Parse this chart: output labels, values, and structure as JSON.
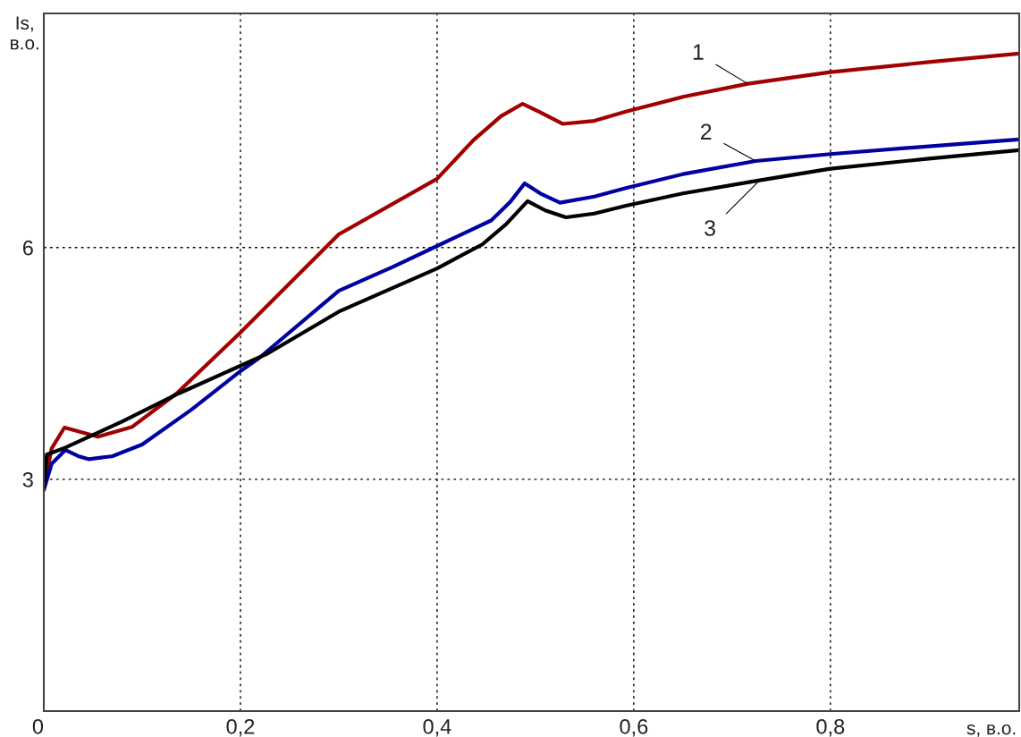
{
  "chart_data": {
    "type": "line",
    "xlabel": "s, в.о.",
    "ylabel": "Is,\nв.о.",
    "xlim": [
      0,
      0.992
    ],
    "ylim": [
      0,
      9.03
    ],
    "xticks": [
      {
        "value": 0,
        "label": "0"
      },
      {
        "value": 0.2,
        "label": "0,2"
      },
      {
        "value": 0.4,
        "label": "0,4"
      },
      {
        "value": 0.6,
        "label": "0,6"
      },
      {
        "value": 0.8,
        "label": "0,8"
      }
    ],
    "yticks": [
      {
        "value": 0,
        "label": null
      },
      3,
      6
    ],
    "grid": true,
    "line_style": "solid",
    "marker": "none",
    "series": [
      {
        "color": "#a00000",
        "x": [
          0,
          0.008,
          0.021,
          0.035,
          0.055,
          0.09,
          0.135,
          0.2,
          0.3,
          0.4,
          0.437,
          0.465,
          0.487,
          0.505,
          0.528,
          0.56,
          0.592,
          0.65,
          0.716,
          0.8,
          0.9,
          0.992
        ],
        "values": [
          2.89,
          3.4,
          3.67,
          3.62,
          3.55,
          3.68,
          4.11,
          4.9,
          6.17,
          6.89,
          7.39,
          7.7,
          7.86,
          7.75,
          7.6,
          7.64,
          7.76,
          7.95,
          8.12,
          8.27,
          8.4,
          8.51
        ]
      },
      {
        "color": "#0000a0",
        "x": [
          0,
          0.008,
          0.022,
          0.035,
          0.046,
          0.07,
          0.1,
          0.15,
          0.2,
          0.219,
          0.3,
          0.355,
          0.4,
          0.455,
          0.475,
          0.489,
          0.505,
          0.525,
          0.56,
          0.592,
          0.65,
          0.724,
          0.8,
          0.9,
          0.992
        ],
        "values": [
          2.86,
          3.2,
          3.38,
          3.3,
          3.26,
          3.3,
          3.45,
          3.9,
          4.4,
          4.57,
          5.44,
          5.75,
          6.02,
          6.35,
          6.6,
          6.83,
          6.7,
          6.58,
          6.66,
          6.77,
          6.95,
          7.12,
          7.21,
          7.31,
          7.4
        ]
      },
      {
        "color": "#000000",
        "x": [
          0,
          0.003,
          0.022,
          0.08,
          0.137,
          0.228,
          0.3,
          0.4,
          0.446,
          0.47,
          0.492,
          0.51,
          0.531,
          0.56,
          0.592,
          0.65,
          0.728,
          0.8,
          0.9,
          0.992
        ],
        "values": [
          2.89,
          3.32,
          3.41,
          3.75,
          4.11,
          4.63,
          5.17,
          5.73,
          6.04,
          6.3,
          6.6,
          6.48,
          6.39,
          6.44,
          6.54,
          6.7,
          6.87,
          7.02,
          7.15,
          7.26
        ]
      }
    ],
    "annotations": [
      {
        "text": "1",
        "x": 0.716,
        "y": 8.12
      },
      {
        "text": "2",
        "x": 0.724,
        "y": 7.12
      },
      {
        "text": "3",
        "x": 0.728,
        "y": 6.87
      }
    ]
  }
}
